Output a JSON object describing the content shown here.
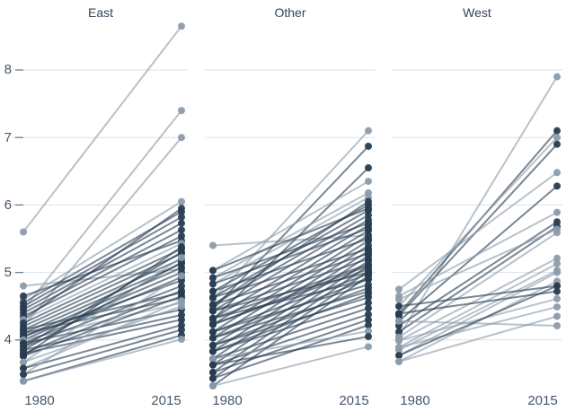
{
  "chart_data": {
    "type": "line",
    "subtype": "slopegraph-small-multiples",
    "title": "",
    "x": [
      1980,
      2015
    ],
    "x_tick_labels": [
      "1980",
      "2015"
    ],
    "y_ticks": [
      8,
      7,
      6,
      5,
      4
    ],
    "ylim": [
      3.1,
      8.9
    ],
    "grid": true,
    "legend": false,
    "colors": {
      "dark": "#283d52",
      "light": "#8d9cab",
      "grid": "#dde3e9",
      "tick_dash": "#6e8093",
      "tick_text": "#44566b",
      "title_text": "#33445a"
    },
    "facets": [
      {
        "title": "East",
        "lines": [
          [
            5.6,
            8.65,
            "light"
          ],
          [
            4.45,
            7.4,
            "light"
          ],
          [
            4.2,
            7.0,
            "light"
          ],
          [
            4.8,
            5.05,
            "light"
          ],
          [
            4.6,
            6.05,
            "light"
          ],
          [
            4.65,
            5.47,
            "dark"
          ],
          [
            4.55,
            5.9,
            "dark"
          ],
          [
            4.5,
            5.82,
            "dark"
          ],
          [
            4.45,
            5.73,
            "dark"
          ],
          [
            4.4,
            5.63,
            "dark"
          ],
          [
            4.35,
            5.54,
            "dark"
          ],
          [
            4.3,
            5.95,
            "dark"
          ],
          [
            4.3,
            5.43,
            "light"
          ],
          [
            4.25,
            5.35,
            "dark"
          ],
          [
            4.2,
            5.28,
            "dark"
          ],
          [
            4.15,
            5.2,
            "dark"
          ],
          [
            4.15,
            4.7,
            "dark"
          ],
          [
            4.1,
            5.13,
            "dark"
          ],
          [
            4.1,
            4.62,
            "dark"
          ],
          [
            4.05,
            5.07,
            "dark"
          ],
          [
            4.05,
            4.88,
            "dark"
          ],
          [
            4.0,
            5.0,
            "dark"
          ],
          [
            4.0,
            4.55,
            "light"
          ],
          [
            3.95,
            4.93,
            "dark"
          ],
          [
            3.95,
            4.45,
            "dark"
          ],
          [
            3.9,
            5.3,
            "dark"
          ],
          [
            3.9,
            4.8,
            "dark"
          ],
          [
            3.85,
            5.15,
            "dark"
          ],
          [
            3.85,
            4.37,
            "dark"
          ],
          [
            3.8,
            4.73,
            "dark"
          ],
          [
            3.8,
            4.3,
            "dark"
          ],
          [
            3.76,
            5.38,
            "dark"
          ],
          [
            3.76,
            4.65,
            "dark"
          ],
          [
            3.67,
            5.22,
            "light"
          ],
          [
            3.67,
            4.5,
            "light"
          ],
          [
            3.58,
            4.58,
            "light"
          ],
          [
            3.58,
            4.22,
            "dark"
          ],
          [
            3.49,
            4.95,
            "light"
          ],
          [
            3.49,
            4.15,
            "dark"
          ],
          [
            3.39,
            4.07,
            "dark"
          ],
          [
            3.39,
            4.01,
            "light"
          ]
        ]
      },
      {
        "title": "Other",
        "lines": [
          [
            5.4,
            5.55,
            "light"
          ],
          [
            4.6,
            7.1,
            "light"
          ],
          [
            4.45,
            6.87,
            "dark"
          ],
          [
            4.3,
            6.55,
            "dark"
          ],
          [
            5.03,
            6.35,
            "light"
          ],
          [
            4.92,
            6.18,
            "light"
          ],
          [
            4.83,
            6.11,
            "light"
          ],
          [
            4.72,
            6.0,
            "dark"
          ],
          [
            4.63,
            5.92,
            "dark"
          ],
          [
            4.52,
            6.05,
            "dark"
          ],
          [
            4.52,
            5.85,
            "dark"
          ],
          [
            4.43,
            5.78,
            "dark"
          ],
          [
            4.43,
            5.0,
            "dark"
          ],
          [
            4.32,
            5.7,
            "dark"
          ],
          [
            4.32,
            4.9,
            "dark"
          ],
          [
            4.23,
            5.62,
            "dark"
          ],
          [
            4.23,
            5.1,
            "dark"
          ],
          [
            4.12,
            5.55,
            "dark"
          ],
          [
            4.12,
            4.82,
            "dark"
          ],
          [
            4.03,
            5.47,
            "dark"
          ],
          [
            4.03,
            4.72,
            "dark"
          ],
          [
            3.92,
            5.4,
            "dark"
          ],
          [
            3.92,
            4.63,
            "dark"
          ],
          [
            3.83,
            5.32,
            "dark"
          ],
          [
            3.83,
            4.55,
            "dark"
          ],
          [
            3.72,
            5.25,
            "dark"
          ],
          [
            3.72,
            4.47,
            "dark"
          ],
          [
            3.63,
            5.17,
            "dark"
          ],
          [
            3.63,
            4.38,
            "dark"
          ],
          [
            3.52,
            5.1,
            "dark"
          ],
          [
            3.52,
            4.3,
            "dark"
          ],
          [
            3.43,
            5.02,
            "dark"
          ],
          [
            3.43,
            4.22,
            "dark"
          ],
          [
            3.32,
            4.95,
            "dark"
          ],
          [
            3.32,
            3.9,
            "light"
          ],
          [
            5.03,
            5.95,
            "dark"
          ],
          [
            4.92,
            5.73,
            "dark"
          ],
          [
            4.83,
            5.65,
            "dark"
          ],
          [
            4.72,
            5.5,
            "dark"
          ],
          [
            4.63,
            5.35,
            "dark"
          ],
          [
            4.52,
            5.28,
            "dark"
          ],
          [
            4.43,
            5.2,
            "dark"
          ],
          [
            4.32,
            5.12,
            "dark"
          ],
          [
            4.23,
            5.05,
            "dark"
          ],
          [
            4.12,
            4.98,
            "dark"
          ],
          [
            4.03,
            4.9,
            "dark"
          ],
          [
            3.92,
            4.77,
            "dark"
          ],
          [
            3.83,
            4.68,
            "dark"
          ],
          [
            3.72,
            4.13,
            "light"
          ],
          [
            3.63,
            4.05,
            "dark"
          ]
        ]
      },
      {
        "title": "West",
        "lines": [
          [
            4.05,
            7.9,
            "light"
          ],
          [
            4.39,
            7.1,
            "dark"
          ],
          [
            4.5,
            7.0,
            "light"
          ],
          [
            4.36,
            6.9,
            "dark"
          ],
          [
            4.75,
            6.48,
            "light"
          ],
          [
            4.28,
            6.28,
            "dark"
          ],
          [
            4.65,
            5.89,
            "light"
          ],
          [
            4.21,
            5.75,
            "dark"
          ],
          [
            4.12,
            5.68,
            "dark"
          ],
          [
            4.6,
            5.64,
            "light"
          ],
          [
            4.04,
            5.59,
            "light"
          ],
          [
            3.99,
            5.21,
            "light"
          ],
          [
            3.89,
            5.13,
            "light"
          ],
          [
            3.85,
            5.03,
            "light"
          ],
          [
            3.77,
            5.0,
            "light"
          ],
          [
            3.68,
            4.87,
            "light"
          ],
          [
            4.5,
            4.8,
            "dark"
          ],
          [
            4.39,
            4.72,
            "dark"
          ],
          [
            3.99,
            4.61,
            "light"
          ],
          [
            3.89,
            4.49,
            "light"
          ],
          [
            4.28,
            4.21,
            "light"
          ],
          [
            3.77,
            4.8,
            "dark"
          ],
          [
            3.68,
            4.35,
            "light"
          ]
        ]
      }
    ]
  }
}
